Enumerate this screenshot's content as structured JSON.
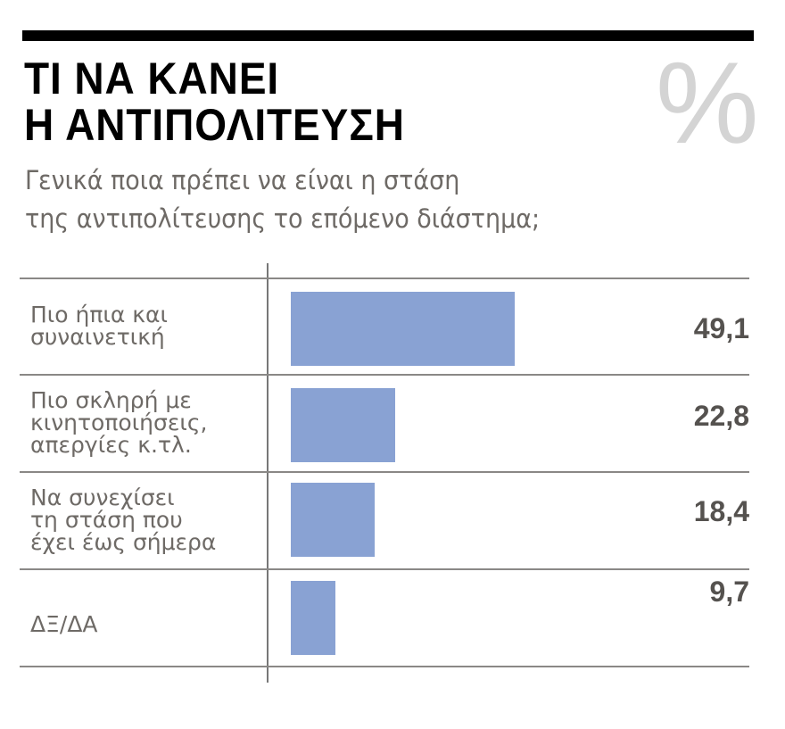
{
  "chart_data": {
    "type": "bar",
    "orientation": "horizontal",
    "title": "ΤΙ ΝΑ ΚΑΝΕΙ Η ΑΝΤΙΠΟΛΙΤΕΥΣΗ",
    "title_lines": [
      "ΤΙ ΝΑ ΚΑΝΕΙ",
      "Η ΑΝΤΙΠΟΛΙΤΕΥΣΗ"
    ],
    "unit_symbol": "%",
    "subtitle_lines": [
      "Γενικά ποια πρέπει να είναι η στάση",
      "της αντιπολίτευσης το επόμενο διάστημα;"
    ],
    "categories": [
      [
        "Πιο ήπια και",
        "συναινετική"
      ],
      [
        "Πιο σκληρή με",
        "κινητοποιήσεις,",
        "απεργίες κ.τλ."
      ],
      [
        "Να συνεχίσει",
        "τη στάση που",
        "έχει έως σήμερα"
      ],
      [
        "ΔΞ/ΔΑ"
      ]
    ],
    "values": [
      49.1,
      22.8,
      18.4,
      9.7
    ],
    "value_labels": [
      "49,1",
      "22,8",
      "18,4",
      "9,7"
    ],
    "xlim": [
      0,
      100
    ],
    "bar_color": "#89a2d3",
    "grid": false
  }
}
